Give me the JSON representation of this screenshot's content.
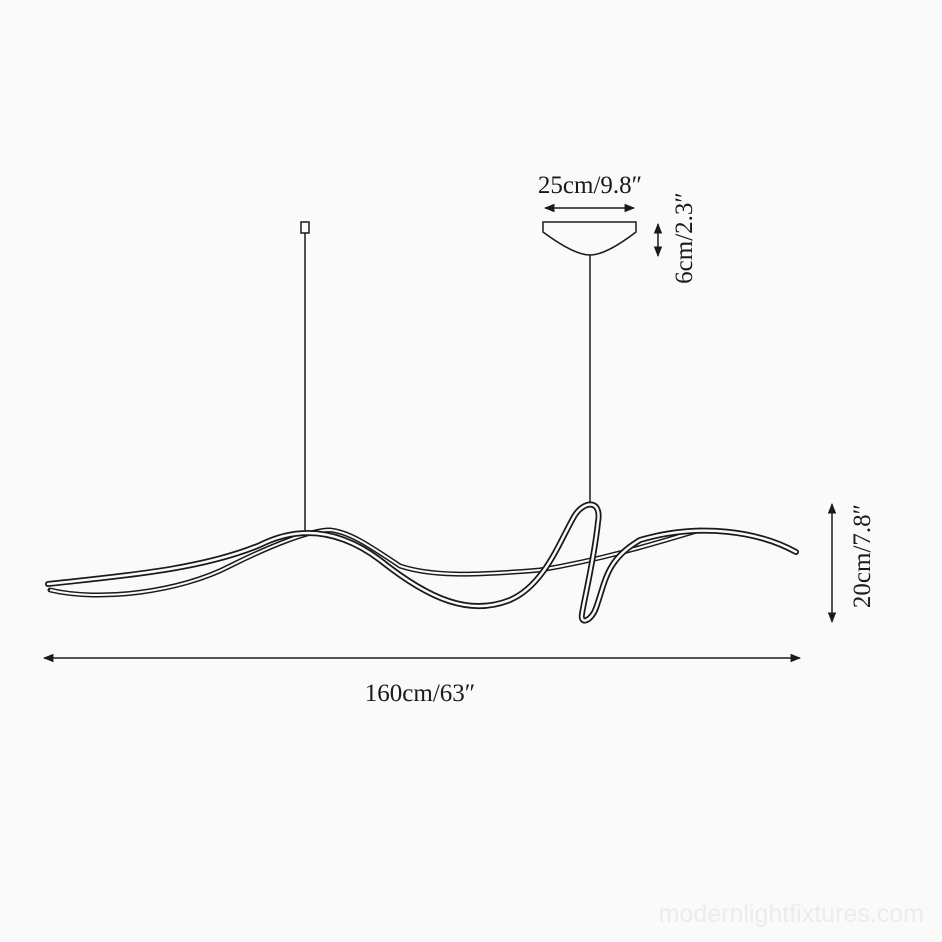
{
  "dimensions": {
    "canopy_width": "25cm/9.8″",
    "canopy_height": "6cm/2.3″",
    "fixture_height": "20cm/7.8″",
    "total_length": "160cm/63″"
  },
  "watermark": "modernlightfixtures.com"
}
